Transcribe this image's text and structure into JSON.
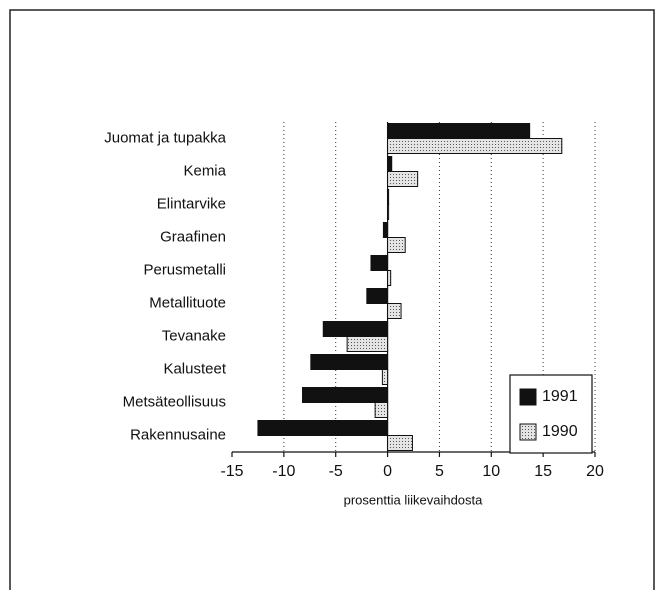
{
  "chart_data": {
    "type": "hbar",
    "categories": [
      "Juomat ja tupakka",
      "Kemia",
      "Elintarvike",
      "Graafinen",
      "Perusmetalli",
      "Metallituote",
      "Tevanake",
      "Kalusteet",
      "Metsäteollisuus",
      "Rakennusaine"
    ],
    "series": [
      {
        "name": "1991",
        "color": "#111111",
        "values": [
          13.7,
          0.4,
          0.1,
          -0.4,
          -1.6,
          -2.0,
          -6.2,
          -7.4,
          -8.2,
          -12.5
        ]
      },
      {
        "name": "1990",
        "color": "#dcdcdc",
        "pattern": "dotted",
        "values": [
          16.8,
          2.9,
          0.1,
          1.7,
          0.3,
          1.3,
          -3.9,
          -0.5,
          -1.2,
          2.4
        ]
      }
    ],
    "xlabel": "prosenttia liikevaihdosta",
    "xlim": [
      -15,
      20
    ],
    "xticks": [
      -15,
      -10,
      -5,
      0,
      5,
      10,
      15,
      20
    ],
    "grid": true,
    "legend": "lower right"
  }
}
